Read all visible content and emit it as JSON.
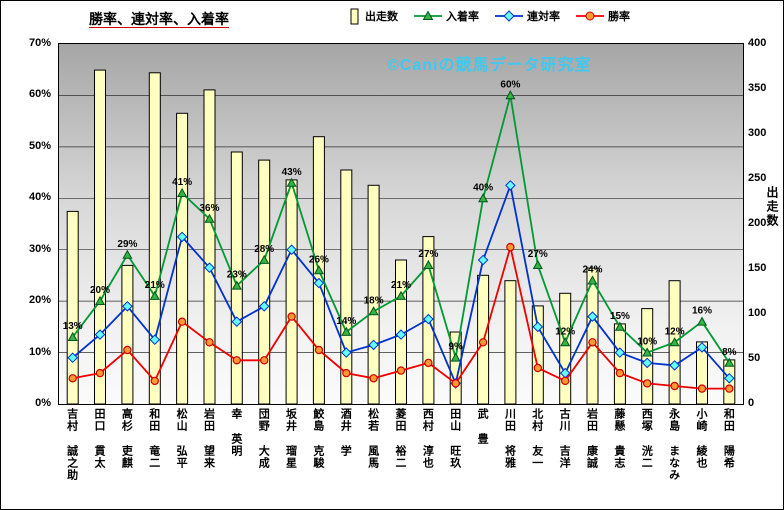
{
  "page": {
    "background": "#FFFFFF",
    "frame_border": "#000000"
  },
  "chart_data": {
    "type": "combo-bar-line",
    "title": "勝率、連対率、入着率",
    "watermark": "©Caniの競馬データ研究室",
    "legend_position": "top",
    "grid": true,
    "left_axis": {
      "min": 0,
      "max": 70,
      "step": 10,
      "format": "percent"
    },
    "right_axis": {
      "min": 0,
      "max": 400,
      "step": 50,
      "label": "出走数"
    },
    "categories": [
      "吉村 誠之助",
      "田口 貫太",
      "高杉 吏麒",
      "和田 竜二",
      "松山 弘平",
      "岩田 望来",
      "幸 英明",
      "団野 大成",
      "坂井 瑠星",
      "鮫島 克駿",
      "酒井 学",
      "松若 風馬",
      "菱田 裕二",
      "西村 淳也",
      "田山 旺玖",
      "武 豊",
      "川田 将雅",
      "北村 友一",
      "古川 吉洋",
      "岩田 康誠",
      "藤懸 貴志",
      "西塚 洸二",
      "永島 まなみ",
      "小崎 綾也",
      "和田 陽希"
    ],
    "series": [
      {
        "name": "出走数",
        "type": "bar",
        "axis": "right",
        "color": "#FFFFC0",
        "border": "#000000",
        "values": [
          214,
          371,
          154,
          368,
          323,
          349,
          280,
          271,
          249,
          297,
          260,
          243,
          160,
          186,
          80,
          143,
          137,
          109,
          123,
          151,
          89,
          106,
          137,
          69,
          49
        ]
      },
      {
        "name": "入着率",
        "type": "line",
        "axis": "left",
        "marker": "triangle",
        "color": "#009933",
        "marker_fill": "#33B540",
        "marker_stroke": "#005522",
        "show_labels": true,
        "label_suffix": "%",
        "values": [
          13,
          20,
          29,
          21,
          41,
          36,
          23,
          28,
          43,
          26,
          14,
          18,
          21,
          27,
          9,
          40,
          60,
          27,
          12,
          24,
          15,
          10,
          12,
          16,
          8
        ]
      },
      {
        "name": "連対率",
        "type": "line",
        "axis": "left",
        "marker": "diamond",
        "color": "#0033CC",
        "marker_fill": "#66FFFF",
        "marker_stroke": "#0033CC",
        "show_labels": false,
        "values": [
          9,
          13.5,
          19,
          12.5,
          32.5,
          26.5,
          16,
          19,
          30,
          23.5,
          10,
          11.5,
          13.5,
          16.5,
          4,
          28,
          42.5,
          15,
          6,
          17,
          10,
          8,
          7.5,
          11,
          5
        ]
      },
      {
        "name": "勝率",
        "type": "line",
        "axis": "left",
        "marker": "circle",
        "color": "#EE0000",
        "marker_fill": "#FF9933",
        "marker_stroke": "#CC0000",
        "show_labels": false,
        "values": [
          5,
          6,
          10.5,
          4.5,
          16,
          12,
          8.5,
          8.5,
          17,
          10.5,
          6,
          5,
          6.5,
          8,
          4,
          12,
          30.5,
          7,
          4.5,
          12,
          6,
          4,
          3.5,
          3,
          3
        ]
      }
    ]
  }
}
